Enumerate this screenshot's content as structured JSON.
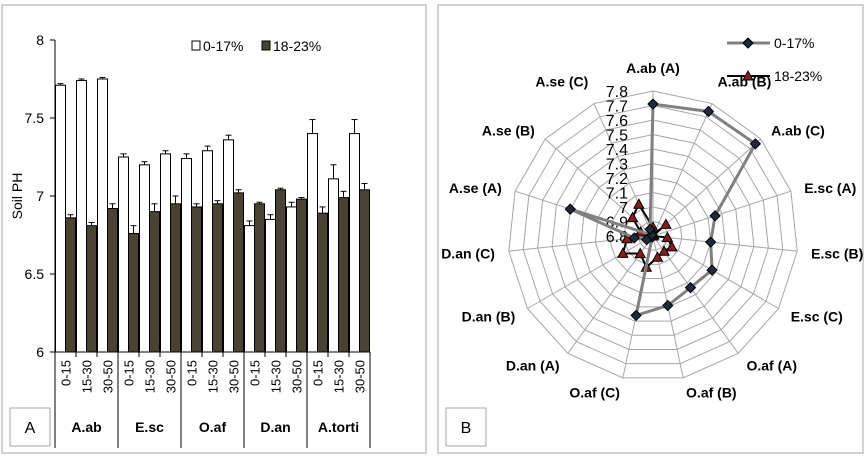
{
  "chart_data": [
    {
      "panel_label": "A",
      "type": "bar",
      "ylabel": "Soil PH",
      "ylim": [
        6,
        8
      ],
      "yticks": [
        "6",
        "6.5",
        "7",
        "7.5",
        "8"
      ],
      "grid": false,
      "legend": "top-right",
      "groups": [
        "A.ab",
        "E.sc",
        "O.af",
        "D.an",
        "A.torti"
      ],
      "depths": [
        "0-15",
        "15-30",
        "30-50"
      ],
      "categories": [
        "A.ab 0-15",
        "A.ab 15-30",
        "A.ab 30-50",
        "E.sc 0-15",
        "E.sc 15-30",
        "E.sc 30-50",
        "O.af 0-15",
        "O.af 15-30",
        "O.af 30-50",
        "D.an 0-15",
        "D.an 15-30",
        "D.an 30-50",
        "A.torti 0-15",
        "A.torti 15-30",
        "A.torti 30-50"
      ],
      "series": [
        {
          "name": "0-17%",
          "color": "#ffffff",
          "values": [
            7.71,
            7.74,
            7.75,
            7.25,
            7.2,
            7.27,
            7.24,
            7.29,
            7.36,
            6.81,
            6.85,
            6.93,
            7.4,
            7.11,
            7.4
          ],
          "errors": [
            0.01,
            0.01,
            0.01,
            0.02,
            0.02,
            0.02,
            0.03,
            0.03,
            0.03,
            0.03,
            0.03,
            0.03,
            0.09,
            0.09,
            0.09
          ]
        },
        {
          "name": "18-23%",
          "color": "#4a4332",
          "values": [
            6.86,
            6.81,
            6.92,
            6.76,
            6.9,
            6.95,
            6.93,
            6.95,
            7.02,
            6.95,
            7.04,
            6.98,
            6.89,
            6.99,
            7.04
          ],
          "errors": [
            0.02,
            0.02,
            0.03,
            0.05,
            0.05,
            0.05,
            0.02,
            0.02,
            0.02,
            0.01,
            0.01,
            0.01,
            0.04,
            0.04,
            0.04
          ]
        }
      ]
    },
    {
      "panel_label": "B",
      "type": "radar",
      "categories": [
        "A.ab (A)",
        "A.ab (B)",
        "A.ab (C)",
        "E.sc (A)",
        "E.sc (B)",
        "E.sc (C)",
        "O.af (A)",
        "O.af (B)",
        "O.af (C)",
        "D.an (A)",
        "D.an (B)",
        "D.an (C)",
        "A.se (A)",
        "A.se (B)",
        "A.se (C)"
      ],
      "rlim": [
        6.8,
        7.8
      ],
      "rticks": [
        "6.8",
        "6.9",
        "7",
        "7.1",
        "7.2",
        "7.3",
        "7.4",
        "7.5",
        "7.6",
        "7.7",
        "7.8"
      ],
      "legend": "top-right",
      "series": [
        {
          "name": "0-17%",
          "color": "#808080",
          "values": [
            7.71,
            7.74,
            7.75,
            7.25,
            7.2,
            7.27,
            7.24,
            7.29,
            7.36,
            6.81,
            6.85,
            6.93,
            7.4,
            6.81,
            6.85
          ]
        },
        {
          "name": "18-23%",
          "color": "#000000",
          "values": [
            6.86,
            6.81,
            6.92,
            6.76,
            6.9,
            6.95,
            6.93,
            6.95,
            7.02,
            6.95,
            7.04,
            6.98,
            6.89,
            6.99,
            7.04
          ]
        }
      ]
    }
  ]
}
